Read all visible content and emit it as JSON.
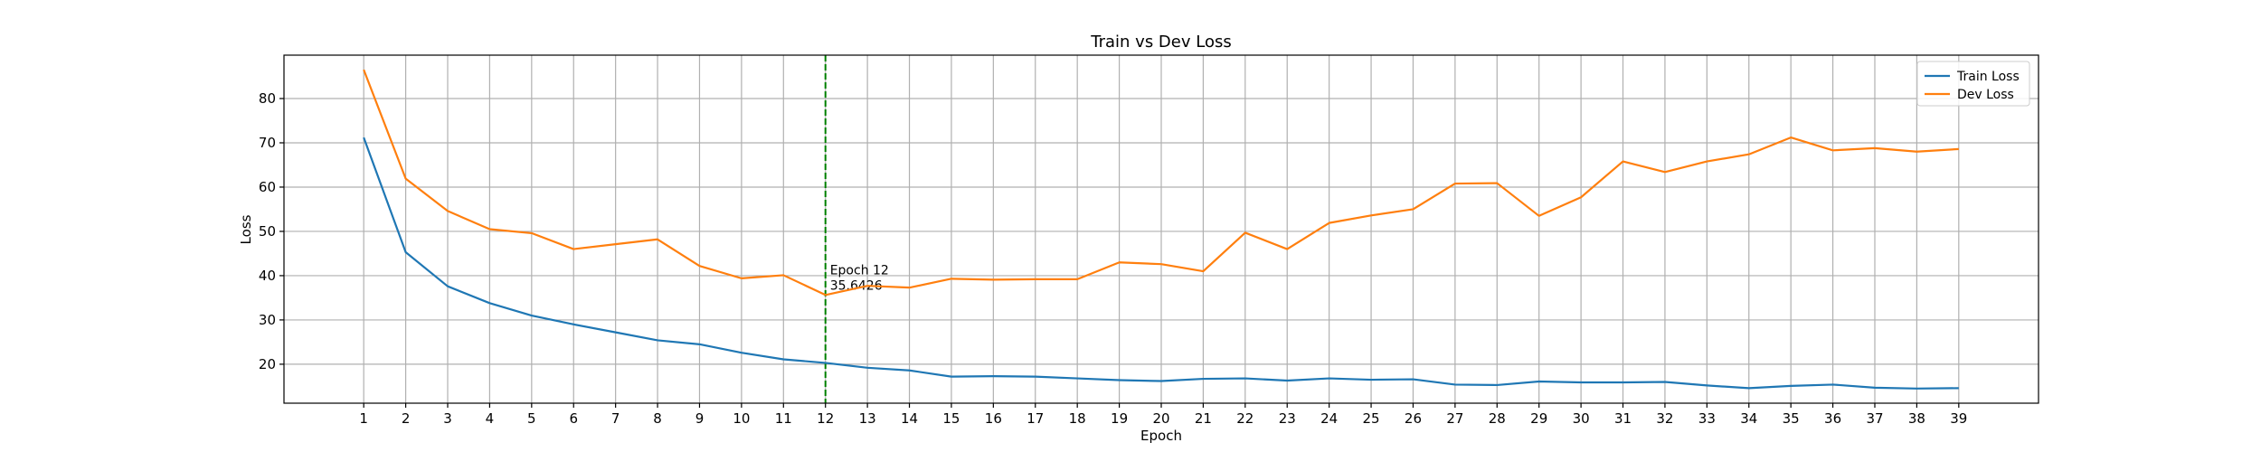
{
  "chart_data": {
    "type": "line",
    "title": "Train vs Dev Loss",
    "xlabel": "Epoch",
    "ylabel": "Loss",
    "xlim": [
      -0.9,
      40.9
    ],
    "ylim": [
      11.2,
      89.8
    ],
    "x_ticks": [
      1,
      2,
      3,
      4,
      5,
      6,
      7,
      8,
      9,
      10,
      11,
      12,
      13,
      14,
      15,
      16,
      17,
      18,
      19,
      20,
      21,
      22,
      23,
      24,
      25,
      26,
      27,
      28,
      29,
      30,
      31,
      32,
      33,
      34,
      35,
      36,
      37,
      38,
      39
    ],
    "y_ticks": [
      20,
      30,
      40,
      50,
      60,
      70,
      80
    ],
    "grid": true,
    "legend_position": "top-right",
    "x": [
      1,
      2,
      3,
      4,
      5,
      6,
      7,
      8,
      9,
      10,
      11,
      12,
      13,
      14,
      15,
      16,
      17,
      18,
      19,
      20,
      21,
      22,
      23,
      24,
      25,
      26,
      27,
      28,
      29,
      30,
      31,
      32,
      33,
      34,
      35,
      36,
      37,
      38,
      39
    ],
    "series": [
      {
        "name": "Train Loss",
        "color": "#1f77b4",
        "values": [
          71.2,
          45.3,
          37.6,
          33.8,
          31.0,
          29.0,
          27.2,
          25.4,
          24.5,
          22.6,
          21.1,
          20.3,
          19.2,
          18.6,
          17.2,
          17.3,
          17.2,
          16.8,
          16.4,
          16.2,
          16.7,
          16.8,
          16.3,
          16.8,
          16.5,
          16.6,
          15.4,
          15.3,
          16.1,
          15.9,
          15.9,
          16.0,
          15.2,
          14.6,
          15.1,
          15.4,
          14.7,
          14.5,
          14.6
        ]
      },
      {
        "name": "Dev Loss",
        "color": "#ff7f0e",
        "values": [
          86.5,
          61.9,
          54.6,
          50.5,
          49.6,
          46.0,
          47.1,
          48.2,
          42.2,
          39.4,
          40.1,
          35.6426,
          37.7,
          37.3,
          39.3,
          39.1,
          39.2,
          39.2,
          43.0,
          42.6,
          41.0,
          49.7,
          46.0,
          51.9,
          53.6,
          55.0,
          60.8,
          60.9,
          53.5,
          57.7,
          65.8,
          63.4,
          65.8,
          67.4,
          71.2,
          68.3,
          68.8,
          68.0,
          68.6
        ]
      }
    ],
    "annotations": [
      {
        "x": 12,
        "line_color": "#008000",
        "line_style": "dashed",
        "text_lines": [
          "Epoch 12",
          "35.6426"
        ]
      }
    ]
  }
}
